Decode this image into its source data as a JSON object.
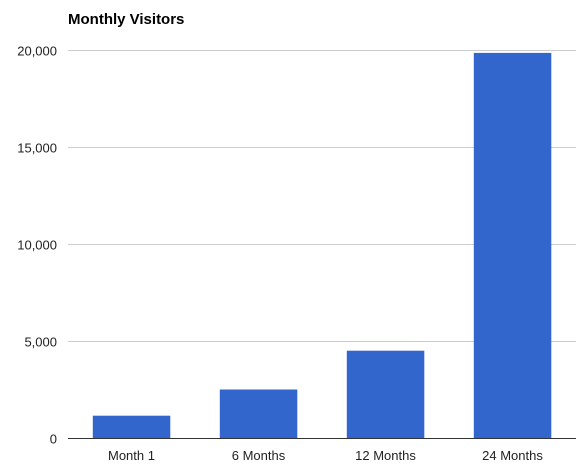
{
  "chart_data": {
    "type": "bar",
    "title": "Monthly Visitors",
    "categories": [
      "Month 1",
      "6 Months",
      "12 Months",
      "24 Months"
    ],
    "values": [
      1150,
      2500,
      4500,
      19850
    ],
    "ylim": [
      0,
      20000
    ],
    "yticks": [
      0,
      5000,
      10000,
      15000,
      20000
    ],
    "ytick_labels": [
      "0",
      "5,000",
      "10,000",
      "15,000",
      "20,000"
    ],
    "xlabel": "",
    "ylabel": "",
    "grid": true,
    "legend": "none",
    "bar_color": "#3366cc"
  }
}
